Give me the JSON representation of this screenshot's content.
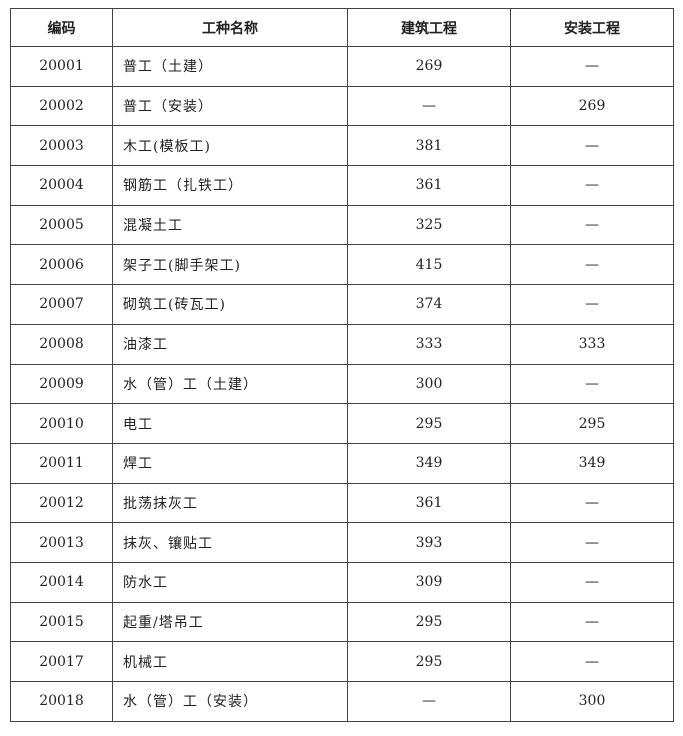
{
  "table": {
    "headers": [
      "编码",
      "工种名称",
      "建筑工程",
      "安装工程"
    ],
    "rows": [
      [
        "20001",
        "普工（土建）",
        "269",
        "—"
      ],
      [
        "20002",
        "普工（安装）",
        "—",
        "269"
      ],
      [
        "20003",
        "木工(模板工)",
        "381",
        "—"
      ],
      [
        "20004",
        "钢筋工（扎铁工）",
        "361",
        "—"
      ],
      [
        "20005",
        "混凝土工",
        "325",
        "—"
      ],
      [
        "20006",
        "架子工(脚手架工)",
        "415",
        "—"
      ],
      [
        "20007",
        "砌筑工(砖瓦工)",
        "374",
        "—"
      ],
      [
        "20008",
        "油漆工",
        "333",
        "333"
      ],
      [
        "20009",
        "水（管）工（土建）",
        "300",
        "—"
      ],
      [
        "20010",
        "电工",
        "295",
        "295"
      ],
      [
        "20011",
        "焊工",
        "349",
        "349"
      ],
      [
        "20012",
        "批荡抹灰工",
        "361",
        "—"
      ],
      [
        "20013",
        "抹灰、镶贴工",
        "393",
        "—"
      ],
      [
        "20014",
        "防水工",
        "309",
        "—"
      ],
      [
        "20015",
        "起重/塔吊工",
        "295",
        "—"
      ],
      [
        "20017",
        "机械工",
        "295",
        "—"
      ],
      [
        "20018",
        "水（管）工（安装）",
        "—",
        "300"
      ]
    ]
  }
}
